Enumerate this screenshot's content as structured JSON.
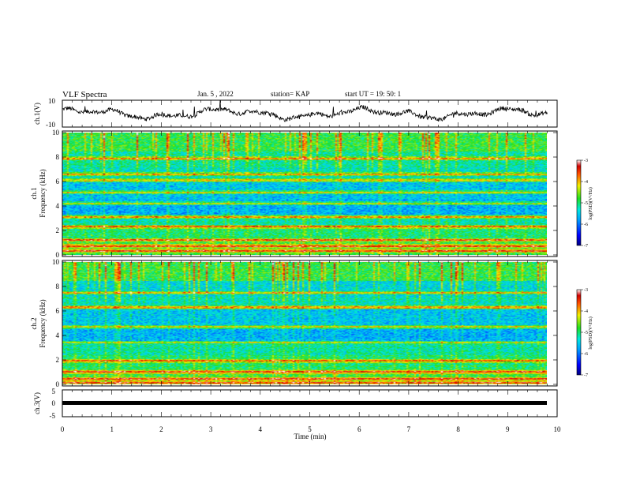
{
  "header": {
    "title": "VLF Spectra",
    "date": "Jan. 5 , 2022",
    "station": "station= KAP",
    "start": "start  UT =   19: 50: 1"
  },
  "chart_data": [
    {
      "type": "line",
      "panel": "ch1-waveform",
      "ylabel": "ch.1(V)",
      "ylim": [
        -10,
        10
      ],
      "ytick_labels": [
        "10",
        "-10"
      ],
      "xlim": [
        0,
        10
      ]
    },
    {
      "type": "heatmap",
      "panel": "ch1-spectrogram",
      "ylabel_line1": "ch.1",
      "ylabel_line2": "Frequency (kHz)",
      "ylim": [
        0,
        10
      ],
      "yticks": [
        0,
        2,
        4,
        6,
        8,
        10
      ],
      "xlim": [
        0,
        9.85
      ],
      "bands_khz": [
        0.3,
        0.7,
        1.2,
        2.3,
        3.1,
        4.2,
        5.1,
        6.1,
        6.6,
        7.9
      ],
      "colorbar": {
        "label": "log(PSD)(V²/Hz)",
        "range": [
          -7,
          -3
        ],
        "tick_labels": [
          "-3",
          "-4",
          "-5",
          "-6",
          "-7"
        ]
      }
    },
    {
      "type": "heatmap",
      "panel": "ch2-spectrogram",
      "ylabel_line1": "ch.2",
      "ylabel_line2": "Frequency (kHz)",
      "ylim": [
        0,
        10
      ],
      "yticks": [
        0,
        2,
        4,
        6,
        8,
        10
      ],
      "xlim": [
        0,
        9.85
      ],
      "bands_khz": [
        0.1,
        0.4,
        1.0,
        1.9,
        3.4,
        4.7,
        6.3,
        7.5
      ],
      "colorbar": {
        "label": "log(PSD)(V²/Hz)",
        "range": [
          -7,
          -3
        ],
        "tick_labels": [
          "-3",
          "-4",
          "-5",
          "-6",
          "-7"
        ]
      }
    },
    {
      "type": "line",
      "panel": "ch3-waveform",
      "ylabel": "ch.3(V)",
      "ylim": [
        -5,
        5
      ],
      "ytick_labels": [
        "5",
        "0",
        "-5"
      ],
      "xlim": [
        0,
        10
      ],
      "xlabel": "Time (min)",
      "xtick_labels": [
        "0",
        "1",
        "2",
        "3",
        "4",
        "5",
        "6",
        "7",
        "8",
        "9",
        "10"
      ]
    }
  ]
}
